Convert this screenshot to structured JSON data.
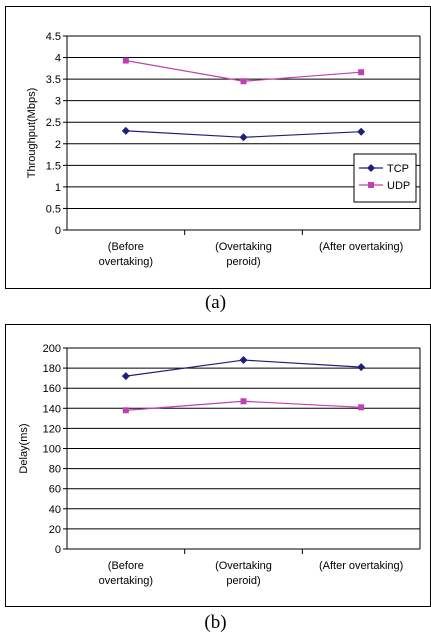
{
  "chart_data": [
    {
      "type": "line",
      "panel_label": "(a)",
      "ylabel": "Throughput(Mbps)",
      "categories": [
        [
          "(Before",
          "overtaking)"
        ],
        [
          "(Overtaking",
          "peroid)"
        ],
        [
          "(After overtaking)"
        ]
      ],
      "ylim": [
        0,
        4.5
      ],
      "yticks": [
        "0",
        "0.5",
        "1",
        "1.5",
        "2",
        "2.5",
        "3",
        "3.5",
        "4",
        "4.5"
      ],
      "grid": true,
      "legend_position": "bottom-right",
      "series": [
        {
          "name": "TCP",
          "values": [
            2.3,
            2.15,
            2.28
          ],
          "color": "#1f1f7a",
          "marker": "diamond"
        },
        {
          "name": "UDP",
          "values": [
            3.93,
            3.45,
            3.66
          ],
          "color": "#c040b0",
          "marker": "square"
        }
      ]
    },
    {
      "type": "line",
      "panel_label": "(b)",
      "ylabel": "Delay(ms)",
      "categories": [
        [
          "(Before",
          "overtaking)"
        ],
        [
          "(Overtaking",
          "peroid)"
        ],
        [
          "(After overtaking)"
        ]
      ],
      "ylim": [
        0,
        200
      ],
      "yticks": [
        "0",
        "20",
        "40",
        "60",
        "80",
        "100",
        "120",
        "140",
        "160",
        "180",
        "200"
      ],
      "grid": true,
      "legend_position": "none",
      "series": [
        {
          "values": [
            172,
            188,
            181
          ],
          "color": "#1f1f7a",
          "marker": "diamond"
        },
        {
          "values": [
            138,
            147,
            141
          ],
          "color": "#c040b0",
          "marker": "square"
        }
      ]
    }
  ]
}
